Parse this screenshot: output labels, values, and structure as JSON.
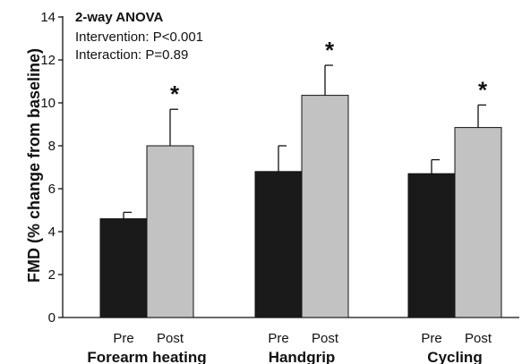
{
  "chart_data": {
    "type": "bar",
    "ylabel": "FMD (% change from baseline)",
    "ylim": [
      0,
      14
    ],
    "yticks": [
      0,
      2,
      4,
      6,
      8,
      10,
      12,
      14
    ],
    "grid": false,
    "annotation": {
      "title": "2-way ANOVA",
      "lines": [
        "Intervention: P<0.001",
        "Interaction: P=0.89"
      ]
    },
    "groups": [
      {
        "name": "Forearm heating",
        "bars": [
          {
            "label": "Pre",
            "value": 4.6,
            "error": 0.3,
            "color": "#1a1a1a",
            "star": ""
          },
          {
            "label": "Post",
            "value": 8.0,
            "error": 1.7,
            "color": "#c2c2c2",
            "star": "*"
          }
        ]
      },
      {
        "name": "Handgrip",
        "bars": [
          {
            "label": "Pre",
            "value": 6.8,
            "error": 1.2,
            "color": "#1a1a1a",
            "star": ""
          },
          {
            "label": "Post",
            "value": 10.35,
            "error": 1.4,
            "color": "#c2c2c2",
            "star": "*"
          }
        ]
      },
      {
        "name": "Cycling",
        "bars": [
          {
            "label": "Pre",
            "value": 6.7,
            "error": 0.65,
            "color": "#1a1a1a",
            "star": ""
          },
          {
            "label": "Post",
            "value": 8.85,
            "error": 1.05,
            "color": "#c2c2c2",
            "star": "*"
          }
        ]
      }
    ]
  }
}
